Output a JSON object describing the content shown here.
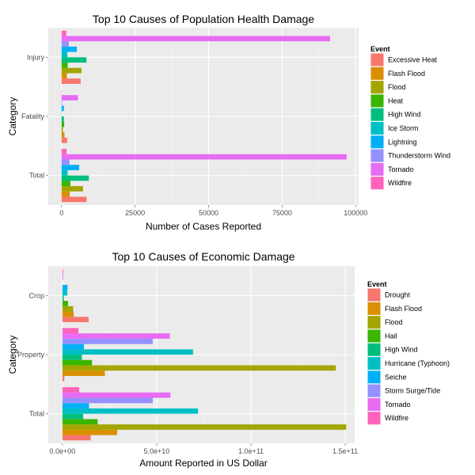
{
  "chart_data": [
    {
      "type": "bar",
      "orientation": "horizontal",
      "title": "Top 10 Causes of Population Health Damage",
      "xlabel": "Number of Cases Reported",
      "ylabel": "Category",
      "categories": [
        "Injury",
        "Fatality",
        "Total"
      ],
      "xlim": [
        -4500,
        101000
      ],
      "xticks": [
        0,
        25000,
        50000,
        75000,
        100000
      ],
      "xtick_labels": [
        "0",
        "25000",
        "50000",
        "75000",
        "100000"
      ],
      "grid": true,
      "legend_title": "Event",
      "legend_position": "right",
      "series": [
        {
          "name": "Excessive Heat",
          "color": "#F8766D",
          "values": [
            6500,
            1900,
            8500
          ]
        },
        {
          "name": "Flash Flood",
          "color": "#D89000",
          "values": [
            1800,
            1000,
            2800
          ]
        },
        {
          "name": "Flood",
          "color": "#A3A500",
          "values": [
            6800,
            500,
            7300
          ]
        },
        {
          "name": "Heat",
          "color": "#39B600",
          "values": [
            2100,
            900,
            3000
          ]
        },
        {
          "name": "High Wind",
          "color": "#00BF7D",
          "values": [
            8500,
            800,
            9300
          ]
        },
        {
          "name": "Ice Storm",
          "color": "#00BFC4",
          "values": [
            1975,
            89,
            2064
          ]
        },
        {
          "name": "Lightning",
          "color": "#00B0F6",
          "values": [
            5200,
            800,
            6000
          ]
        },
        {
          "name": "Thunderstorm Wind",
          "color": "#9590FF",
          "values": [
            2500,
            200,
            2700
          ]
        },
        {
          "name": "Tornado",
          "color": "#E76BF3",
          "values": [
            91300,
            5600,
            96900
          ]
        },
        {
          "name": "Wildfire",
          "color": "#FF62BC",
          "values": [
            1600,
            90,
            1700
          ]
        }
      ]
    },
    {
      "type": "bar",
      "orientation": "horizontal",
      "title": "Top 10 Causes of Economic Damage",
      "xlabel": "Amount Reported in US Dollar",
      "ylabel": "Category",
      "categories": [
        "Crop",
        "Property",
        "Total"
      ],
      "xlim": [
        -7500000000,
        155000000000
      ],
      "xticks": [
        0,
        50000000000,
        100000000000,
        150000000000
      ],
      "xtick_labels": [
        "0.0e+00",
        "5.0e+10",
        "1.0e+11",
        "1.5e+11"
      ],
      "grid": true,
      "legend_title": "Event",
      "legend_position": "right",
      "series": [
        {
          "name": "Drought",
          "color": "#F8766D",
          "values": [
            13900000000,
            1000000000,
            15000000000
          ]
        },
        {
          "name": "Flash Flood",
          "color": "#D89000",
          "values": [
            6000000000,
            22500000000,
            29000000000
          ]
        },
        {
          "name": "Flood",
          "color": "#A3A500",
          "values": [
            5700000000,
            145000000000,
            150500000000
          ]
        },
        {
          "name": "Hail",
          "color": "#39B600",
          "values": [
            3000000000,
            15700000000,
            18700000000
          ]
        },
        {
          "name": "High Wind",
          "color": "#00BF7D",
          "values": [
            700000000,
            10300000000,
            11000000000
          ]
        },
        {
          "name": "Hurricane (Typhoon)",
          "color": "#00BFC4",
          "values": [
            2600000000,
            69300000000,
            71900000000
          ]
        },
        {
          "name": "Seiche",
          "color": "#00B0F6",
          "values": [
            2700000000,
            11400000000,
            14100000000
          ]
        },
        {
          "name": "Storm Surge/Tide",
          "color": "#9590FF",
          "values": [
            0,
            47900000000,
            47900000000
          ]
        },
        {
          "name": "Tornado",
          "color": "#E76BF3",
          "values": [
            400000000,
            56900000000,
            57300000000
          ]
        },
        {
          "name": "Wildfire",
          "color": "#FF62BC",
          "values": [
            400000000,
            8500000000,
            8900000000
          ]
        }
      ]
    }
  ]
}
